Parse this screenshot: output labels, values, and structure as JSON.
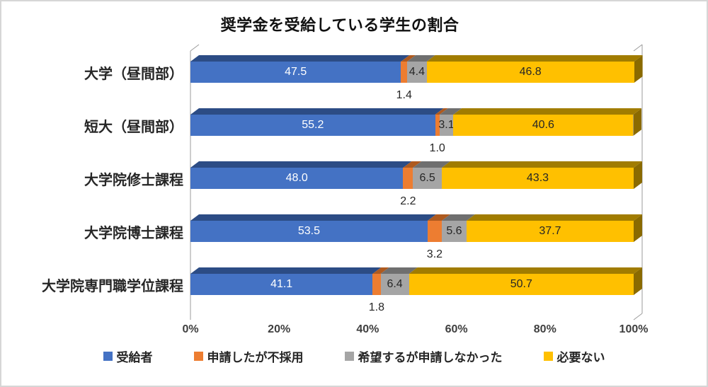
{
  "chart_data": {
    "type": "bar",
    "variant": "3d-horizontal-stacked",
    "title": "奨学金を受給している学生の割合",
    "categories": [
      "大学（昼間部）",
      "短大（昼間部）",
      "大学院修士課程",
      "大学院博士課程",
      "大学院専門職学位課程"
    ],
    "series": [
      {
        "name": "受給者",
        "values": [
          47.5,
          55.2,
          48.0,
          53.5,
          41.1
        ],
        "color": "#4472C4",
        "top_color": "#2C4C85",
        "label_color": "#FFFFFF",
        "label_position": "inside"
      },
      {
        "name": "申請したが不採用",
        "values": [
          1.4,
          1.0,
          2.2,
          3.2,
          1.8
        ],
        "color": "#ED7D31",
        "top_color": "#AE5A1F",
        "label_color": "#262626",
        "label_position": "below"
      },
      {
        "name": "希望するが申請しなかった",
        "values": [
          4.4,
          3.1,
          6.5,
          5.6,
          6.4
        ],
        "color": "#A5A5A5",
        "top_color": "#6F6F6F",
        "label_color": "#262626",
        "label_position": "inside"
      },
      {
        "name": "必要ない",
        "values": [
          46.8,
          40.6,
          43.3,
          37.7,
          50.7
        ],
        "color": "#FFC000",
        "top_color": "#A17C00",
        "end_color": "#8A6A00",
        "label_color": "#262626",
        "label_position": "inside"
      }
    ],
    "x_ticks": [
      "0%",
      "20%",
      "40%",
      "60%",
      "80%",
      "100%"
    ],
    "xlim": [
      0,
      100
    ],
    "legend_position": "bottom",
    "grid": false,
    "axis_color": "#9B9B9B"
  }
}
